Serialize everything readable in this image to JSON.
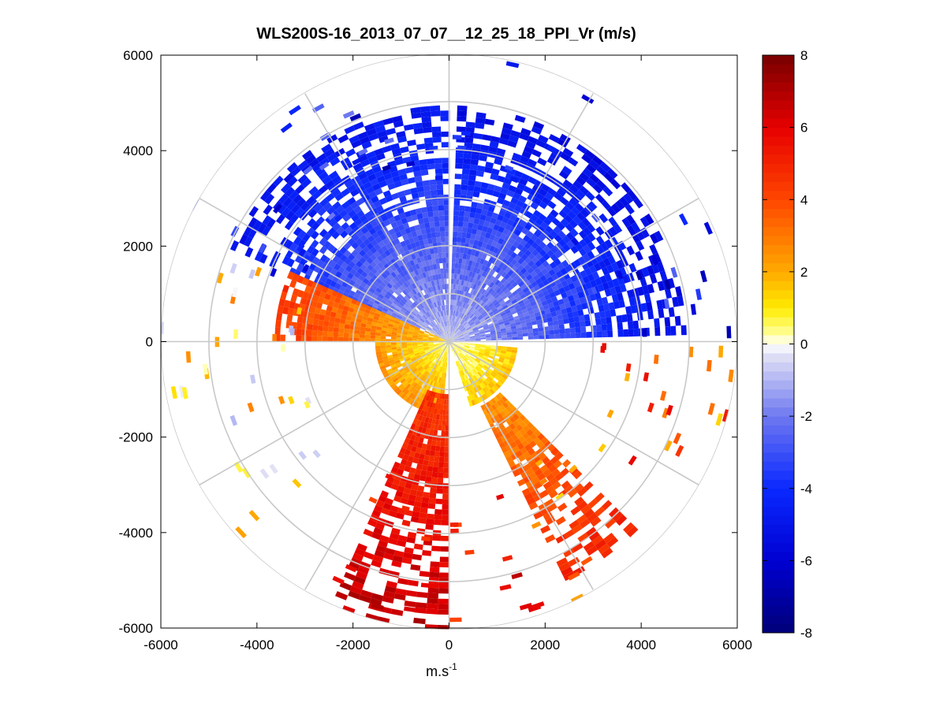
{
  "chart_data": {
    "type": "heatmap",
    "subtype": "polar-ppi-scan",
    "title": "WLS200S-16_2013_07_07__12_25_18_PPI_Vr (m/s)",
    "xlabel": "m.s",
    "xlabel_superscript": "-1",
    "ylabel": "",
    "xlim": [
      -6000,
      6000
    ],
    "ylim": [
      -6000,
      6000
    ],
    "xticks": [
      "-6000",
      "-4000",
      "-2000",
      "0",
      "2000",
      "4000",
      "6000"
    ],
    "yticks": [
      "6000",
      "4000",
      "2000",
      "0",
      "-2000",
      "-4000",
      "-6000"
    ],
    "range_rings_m": [
      1000,
      2000,
      3000,
      4000,
      5000,
      6000
    ],
    "spokes_deg": [
      0,
      30,
      60,
      90,
      120,
      150,
      180,
      210,
      240,
      270,
      300,
      330
    ],
    "colorbar": {
      "min": -8,
      "max": 8,
      "ticks": [
        "8",
        "6",
        "4",
        "2",
        "0",
        "-2",
        "-4",
        "-6",
        "-8"
      ],
      "colormap": "blue-white-yellow-red"
    },
    "sectors": [
      {
        "az_start": -67,
        "az_end": -2,
        "r_min": 0,
        "r_max": 4900,
        "vr_near": -1,
        "vr_far": -5
      },
      {
        "az_start": 2,
        "az_end": 88,
        "r_min": 0,
        "r_max": 4900,
        "vr_near": -1,
        "vr_far": -5.5
      },
      {
        "az_start": -90,
        "az_end": -67,
        "r_min": 0,
        "r_max": 3600,
        "vr_near": 1.5,
        "vr_far": 4.5
      },
      {
        "az_start": -175,
        "az_end": -90,
        "r_min": 0,
        "r_max": 1500,
        "vr_near": 0.5,
        "vr_far": 2.5
      },
      {
        "az_start": 95,
        "az_end": 160,
        "r_min": 0,
        "r_max": 1400,
        "vr_near": 0.3,
        "vr_far": 1.5
      },
      {
        "az_start": 180,
        "az_end": 202,
        "r_min": 1100,
        "r_max": 6000,
        "vr_near": 4.5,
        "vr_far": 6.8
      },
      {
        "az_start": 135,
        "az_end": 152,
        "r_min": 1500,
        "r_max": 5500,
        "vr_near": 2.5,
        "vr_far": 5
      }
    ]
  }
}
